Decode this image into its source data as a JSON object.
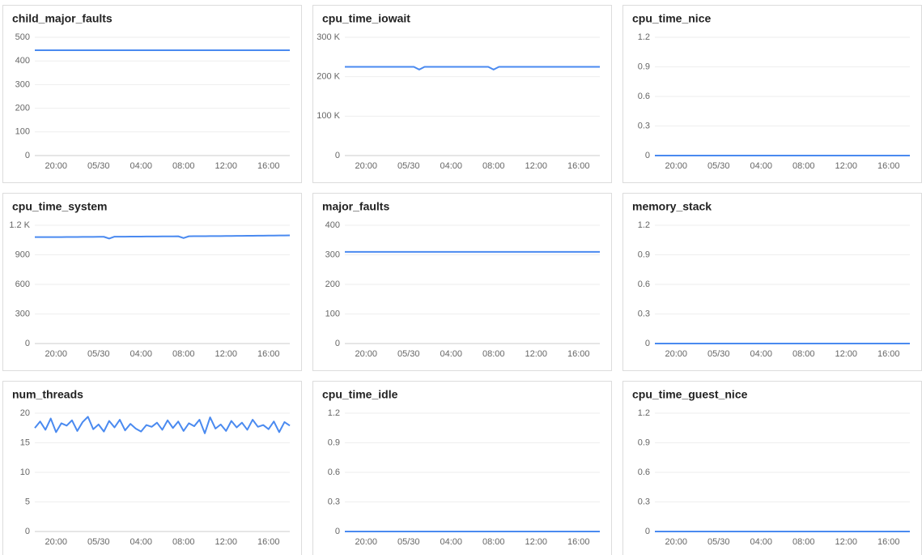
{
  "chart_data": [
    {
      "type": "line",
      "title": "child_major_faults",
      "color": "#4a8af0",
      "categories": [
        null,
        null,
        null,
        null,
        "20:00",
        null,
        null,
        null,
        null,
        null,
        null,
        null,
        "05/30",
        null,
        null,
        null,
        null,
        null,
        null,
        null,
        "04:00",
        null,
        null,
        null,
        null,
        null,
        null,
        null,
        "08:00",
        null,
        null,
        null,
        null,
        null,
        null,
        null,
        "12:00",
        null,
        null,
        null,
        null,
        null,
        null,
        null,
        "16:00",
        null,
        null,
        null,
        null
      ],
      "values": [
        445,
        445,
        445,
        445,
        445,
        445,
        445,
        445,
        445,
        445,
        445,
        445,
        445,
        445,
        445,
        445,
        445,
        445,
        445,
        445,
        445,
        445,
        445,
        445,
        445,
        445,
        445,
        445,
        445,
        445,
        445,
        445,
        445,
        445,
        445,
        445,
        445,
        445,
        445,
        445,
        445,
        445,
        445,
        445,
        445,
        445,
        445,
        445,
        445
      ],
      "ylim": [
        0,
        500
      ],
      "yticks": [
        0,
        100,
        200,
        300,
        400,
        500
      ],
      "grid": true
    },
    {
      "type": "line",
      "title": "cpu_time_iowait",
      "color": "#4a8af0",
      "categories": [
        null,
        null,
        null,
        null,
        "20:00",
        null,
        null,
        null,
        null,
        null,
        null,
        null,
        "05/30",
        null,
        null,
        null,
        null,
        null,
        null,
        null,
        "04:00",
        null,
        null,
        null,
        null,
        null,
        null,
        null,
        "08:00",
        null,
        null,
        null,
        null,
        null,
        null,
        null,
        "12:00",
        null,
        null,
        null,
        null,
        null,
        null,
        null,
        "16:00",
        null,
        null,
        null,
        null
      ],
      "values": [
        225000,
        225000,
        225000,
        225000,
        225000,
        225000,
        225000,
        225000,
        225000,
        225000,
        225000,
        225000,
        225000,
        225000,
        218000,
        225000,
        225000,
        225000,
        225000,
        225000,
        225000,
        225000,
        225000,
        225000,
        225000,
        225000,
        225000,
        225000,
        218000,
        225000,
        225000,
        225000,
        225000,
        225000,
        225000,
        225000,
        225000,
        225000,
        225000,
        225000,
        225000,
        225000,
        225000,
        225000,
        225000,
        225000,
        225000,
        225000,
        225000
      ],
      "ylim": [
        0,
        300000
      ],
      "yticks": [
        0,
        {
          "value": 100000,
          "label": "100 K"
        },
        {
          "value": 200000,
          "label": "200 K"
        },
        {
          "value": 300000,
          "label": "300 K"
        }
      ],
      "grid": true
    },
    {
      "type": "line",
      "title": "cpu_time_nice",
      "color": "#4a8af0",
      "categories": [
        null,
        null,
        null,
        null,
        "20:00",
        null,
        null,
        null,
        null,
        null,
        null,
        null,
        "05/30",
        null,
        null,
        null,
        null,
        null,
        null,
        null,
        "04:00",
        null,
        null,
        null,
        null,
        null,
        null,
        null,
        "08:00",
        null,
        null,
        null,
        null,
        null,
        null,
        null,
        "12:00",
        null,
        null,
        null,
        null,
        null,
        null,
        null,
        "16:00",
        null,
        null,
        null,
        null
      ],
      "values": [
        0,
        0,
        0,
        0,
        0,
        0,
        0,
        0,
        0,
        0,
        0,
        0,
        0,
        0,
        0,
        0,
        0,
        0,
        0,
        0,
        0,
        0,
        0,
        0,
        0,
        0,
        0,
        0,
        0,
        0,
        0,
        0,
        0,
        0,
        0,
        0,
        0,
        0,
        0,
        0,
        0,
        0,
        0,
        0,
        0,
        0,
        0,
        0,
        0
      ],
      "ylim": [
        0,
        1.2
      ],
      "yticks": [
        0,
        0.3,
        0.6,
        0.9,
        1.2
      ],
      "grid": true
    },
    {
      "type": "line",
      "title": "cpu_time_system",
      "color": "#4a8af0",
      "categories": [
        null,
        null,
        null,
        null,
        "20:00",
        null,
        null,
        null,
        null,
        null,
        null,
        null,
        "05/30",
        null,
        null,
        null,
        null,
        null,
        null,
        null,
        "04:00",
        null,
        null,
        null,
        null,
        null,
        null,
        null,
        "08:00",
        null,
        null,
        null,
        null,
        null,
        null,
        null,
        "12:00",
        null,
        null,
        null,
        null,
        null,
        null,
        null,
        "16:00",
        null,
        null,
        null,
        null
      ],
      "values": [
        1080,
        1080,
        1080,
        1080,
        1080,
        1080,
        1081,
        1081,
        1081,
        1082,
        1082,
        1082,
        1083,
        1083,
        1065,
        1084,
        1084,
        1084,
        1085,
        1085,
        1085,
        1086,
        1086,
        1086,
        1087,
        1087,
        1087,
        1088,
        1070,
        1088,
        1089,
        1089,
        1089,
        1090,
        1090,
        1090,
        1091,
        1091,
        1092,
        1092,
        1093,
        1093,
        1094,
        1094,
        1095,
        1095,
        1096,
        1096,
        1097
      ],
      "ylim": [
        0,
        1200
      ],
      "yticks": [
        0,
        300,
        600,
        900,
        {
          "value": 1200,
          "label": "1.2 K"
        }
      ],
      "grid": true
    },
    {
      "type": "line",
      "title": "major_faults",
      "color": "#4a8af0",
      "categories": [
        null,
        null,
        null,
        null,
        "20:00",
        null,
        null,
        null,
        null,
        null,
        null,
        null,
        "05/30",
        null,
        null,
        null,
        null,
        null,
        null,
        null,
        "04:00",
        null,
        null,
        null,
        null,
        null,
        null,
        null,
        "08:00",
        null,
        null,
        null,
        null,
        null,
        null,
        null,
        "12:00",
        null,
        null,
        null,
        null,
        null,
        null,
        null,
        "16:00",
        null,
        null,
        null,
        null
      ],
      "values": [
        310,
        310,
        310,
        310,
        310,
        310,
        310,
        310,
        310,
        310,
        310,
        310,
        310,
        310,
        310,
        310,
        310,
        310,
        310,
        310,
        310,
        310,
        310,
        310,
        310,
        310,
        310,
        310,
        310,
        310,
        310,
        310,
        310,
        310,
        310,
        310,
        310,
        310,
        310,
        310,
        310,
        310,
        310,
        310,
        310,
        310,
        310,
        310,
        310
      ],
      "ylim": [
        0,
        400
      ],
      "yticks": [
        0,
        100,
        200,
        300,
        400
      ],
      "grid": true
    },
    {
      "type": "line",
      "title": "memory_stack",
      "color": "#4a8af0",
      "categories": [
        null,
        null,
        null,
        null,
        "20:00",
        null,
        null,
        null,
        null,
        null,
        null,
        null,
        "05/30",
        null,
        null,
        null,
        null,
        null,
        null,
        null,
        "04:00",
        null,
        null,
        null,
        null,
        null,
        null,
        null,
        "08:00",
        null,
        null,
        null,
        null,
        null,
        null,
        null,
        "12:00",
        null,
        null,
        null,
        null,
        null,
        null,
        null,
        "16:00",
        null,
        null,
        null,
        null
      ],
      "values": [
        0,
        0,
        0,
        0,
        0,
        0,
        0,
        0,
        0,
        0,
        0,
        0,
        0,
        0,
        0,
        0,
        0,
        0,
        0,
        0,
        0,
        0,
        0,
        0,
        0,
        0,
        0,
        0,
        0,
        0,
        0,
        0,
        0,
        0,
        0,
        0,
        0,
        0,
        0,
        0,
        0,
        0,
        0,
        0,
        0,
        0,
        0,
        0,
        0
      ],
      "ylim": [
        0,
        1.2
      ],
      "yticks": [
        0,
        0.3,
        0.6,
        0.9,
        1.2
      ],
      "grid": true
    },
    {
      "type": "line",
      "title": "num_threads",
      "color": "#4a8af0",
      "categories": [
        null,
        null,
        null,
        null,
        "20:00",
        null,
        null,
        null,
        null,
        null,
        null,
        null,
        "05/30",
        null,
        null,
        null,
        null,
        null,
        null,
        null,
        "04:00",
        null,
        null,
        null,
        null,
        null,
        null,
        null,
        "08:00",
        null,
        null,
        null,
        null,
        null,
        null,
        null,
        "12:00",
        null,
        null,
        null,
        null,
        null,
        null,
        null,
        "16:00",
        null,
        null,
        null,
        null
      ],
      "values": [
        17.5,
        18.6,
        17.2,
        19.1,
        16.8,
        18.3,
        17.9,
        18.8,
        17.0,
        18.5,
        19.4,
        17.3,
        18.1,
        16.9,
        18.7,
        17.6,
        18.9,
        17.1,
        18.2,
        17.4,
        16.9,
        18.0,
        17.7,
        18.4,
        17.2,
        18.8,
        17.5,
        18.6,
        17.0,
        18.3,
        17.8,
        18.9,
        16.6,
        19.3,
        17.4,
        18.1,
        17.0,
        18.7,
        17.6,
        18.4,
        17.2,
        18.9,
        17.7,
        18.0,
        17.3,
        18.6,
        16.8,
        18.5,
        17.9
      ],
      "ylim": [
        0,
        20
      ],
      "yticks": [
        0,
        5,
        10,
        15,
        20
      ],
      "grid": true
    },
    {
      "type": "line",
      "title": "cpu_time_idle",
      "color": "#4a8af0",
      "categories": [
        null,
        null,
        null,
        null,
        "20:00",
        null,
        null,
        null,
        null,
        null,
        null,
        null,
        "05/30",
        null,
        null,
        null,
        null,
        null,
        null,
        null,
        "04:00",
        null,
        null,
        null,
        null,
        null,
        null,
        null,
        "08:00",
        null,
        null,
        null,
        null,
        null,
        null,
        null,
        "12:00",
        null,
        null,
        null,
        null,
        null,
        null,
        null,
        "16:00",
        null,
        null,
        null,
        null
      ],
      "values": [
        0,
        0,
        0,
        0,
        0,
        0,
        0,
        0,
        0,
        0,
        0,
        0,
        0,
        0,
        0,
        0,
        0,
        0,
        0,
        0,
        0,
        0,
        0,
        0,
        0,
        0,
        0,
        0,
        0,
        0,
        0,
        0,
        0,
        0,
        0,
        0,
        0,
        0,
        0,
        0,
        0,
        0,
        0,
        0,
        0,
        0,
        0,
        0,
        0
      ],
      "ylim": [
        0,
        1.2
      ],
      "yticks": [
        0,
        0.3,
        0.6,
        0.9,
        1.2
      ],
      "grid": true
    },
    {
      "type": "line",
      "title": "cpu_time_guest_nice",
      "color": "#4a8af0",
      "categories": [
        null,
        null,
        null,
        null,
        "20:00",
        null,
        null,
        null,
        null,
        null,
        null,
        null,
        "05/30",
        null,
        null,
        null,
        null,
        null,
        null,
        null,
        "04:00",
        null,
        null,
        null,
        null,
        null,
        null,
        null,
        "08:00",
        null,
        null,
        null,
        null,
        null,
        null,
        null,
        "12:00",
        null,
        null,
        null,
        null,
        null,
        null,
        null,
        "16:00",
        null,
        null,
        null,
        null
      ],
      "values": [
        0,
        0,
        0,
        0,
        0,
        0,
        0,
        0,
        0,
        0,
        0,
        0,
        0,
        0,
        0,
        0,
        0,
        0,
        0,
        0,
        0,
        0,
        0,
        0,
        0,
        0,
        0,
        0,
        0,
        0,
        0,
        0,
        0,
        0,
        0,
        0,
        0,
        0,
        0,
        0,
        0,
        0,
        0,
        0,
        0,
        0,
        0,
        0,
        0
      ],
      "ylim": [
        0,
        1.2
      ],
      "yticks": [
        0,
        0.3,
        0.6,
        0.9,
        1.2
      ],
      "grid": true
    }
  ]
}
